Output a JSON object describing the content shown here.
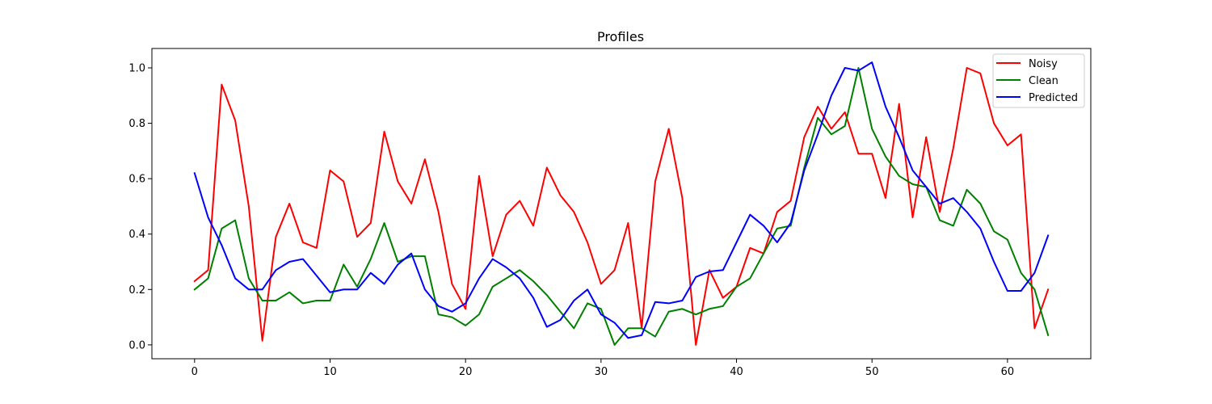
{
  "chart_data": {
    "type": "line",
    "title": "Profiles",
    "xlabel": "",
    "ylabel": "",
    "xlim": [
      -3.15,
      66.15
    ],
    "ylim": [
      -0.05,
      1.07
    ],
    "xticks": [
      0,
      10,
      20,
      30,
      40,
      50,
      60
    ],
    "yticks": [
      0.0,
      0.2,
      0.4,
      0.6,
      0.8,
      1.0
    ],
    "xtick_labels": [
      "0",
      "10",
      "20",
      "30",
      "40",
      "50",
      "60"
    ],
    "ytick_labels": [
      "0.0",
      "0.2",
      "0.4",
      "0.6",
      "0.8",
      "1.0"
    ],
    "grid": false,
    "legend_position": "top-right",
    "x": [
      0,
      1,
      2,
      3,
      4,
      5,
      6,
      7,
      8,
      9,
      10,
      11,
      12,
      13,
      14,
      15,
      16,
      17,
      18,
      19,
      20,
      21,
      22,
      23,
      24,
      25,
      26,
      27,
      28,
      29,
      30,
      31,
      32,
      33,
      34,
      35,
      36,
      37,
      38,
      39,
      40,
      41,
      42,
      43,
      44,
      45,
      46,
      47,
      48,
      49,
      50,
      51,
      52,
      53,
      54,
      55,
      56,
      57,
      58,
      59,
      60,
      61,
      62,
      63
    ],
    "series": [
      {
        "name": "Noisy",
        "color": "#ff0000",
        "values": [
          0.23,
          0.27,
          0.94,
          0.81,
          0.5,
          0.015,
          0.39,
          0.51,
          0.37,
          0.35,
          0.63,
          0.59,
          0.39,
          0.44,
          0.77,
          0.59,
          0.51,
          0.67,
          0.48,
          0.22,
          0.13,
          0.61,
          0.32,
          0.47,
          0.52,
          0.43,
          0.64,
          0.54,
          0.48,
          0.37,
          0.22,
          0.27,
          0.44,
          0.06,
          0.59,
          0.78,
          0.53,
          0.0,
          0.27,
          0.17,
          0.21,
          0.35,
          0.33,
          0.48,
          0.52,
          0.75,
          0.86,
          0.78,
          0.84,
          0.69,
          0.69,
          0.53,
          0.87,
          0.46,
          0.75,
          0.48,
          0.71,
          1.0,
          0.98,
          0.8,
          0.72,
          0.76,
          0.06,
          0.2
        ]
      },
      {
        "name": "Clean",
        "color": "#008000",
        "values": [
          0.2,
          0.24,
          0.42,
          0.45,
          0.24,
          0.16,
          0.16,
          0.19,
          0.15,
          0.16,
          0.16,
          0.29,
          0.21,
          0.31,
          0.44,
          0.3,
          0.32,
          0.32,
          0.11,
          0.1,
          0.07,
          0.11,
          0.21,
          0.24,
          0.27,
          0.23,
          0.18,
          0.12,
          0.06,
          0.15,
          0.13,
          0.0,
          0.06,
          0.06,
          0.03,
          0.12,
          0.13,
          0.11,
          0.13,
          0.14,
          0.21,
          0.24,
          0.33,
          0.42,
          0.43,
          0.64,
          0.82,
          0.76,
          0.79,
          1.0,
          0.78,
          0.68,
          0.61,
          0.58,
          0.57,
          0.45,
          0.43,
          0.56,
          0.51,
          0.41,
          0.38,
          0.26,
          0.2,
          0.035
        ]
      },
      {
        "name": "Predicted",
        "color": "#0000ff",
        "values": [
          0.62,
          0.46,
          0.36,
          0.24,
          0.2,
          0.2,
          0.27,
          0.3,
          0.31,
          0.25,
          0.19,
          0.2,
          0.2,
          0.26,
          0.22,
          0.29,
          0.33,
          0.2,
          0.14,
          0.12,
          0.15,
          0.24,
          0.31,
          0.28,
          0.24,
          0.17,
          0.065,
          0.09,
          0.16,
          0.2,
          0.11,
          0.08,
          0.025,
          0.035,
          0.155,
          0.15,
          0.16,
          0.245,
          0.265,
          0.27,
          0.37,
          0.47,
          0.43,
          0.37,
          0.44,
          0.63,
          0.76,
          0.9,
          1.0,
          0.99,
          1.02,
          0.86,
          0.75,
          0.63,
          0.57,
          0.51,
          0.53,
          0.48,
          0.42,
          0.3,
          0.195,
          0.195,
          0.26,
          0.395
        ]
      }
    ]
  }
}
